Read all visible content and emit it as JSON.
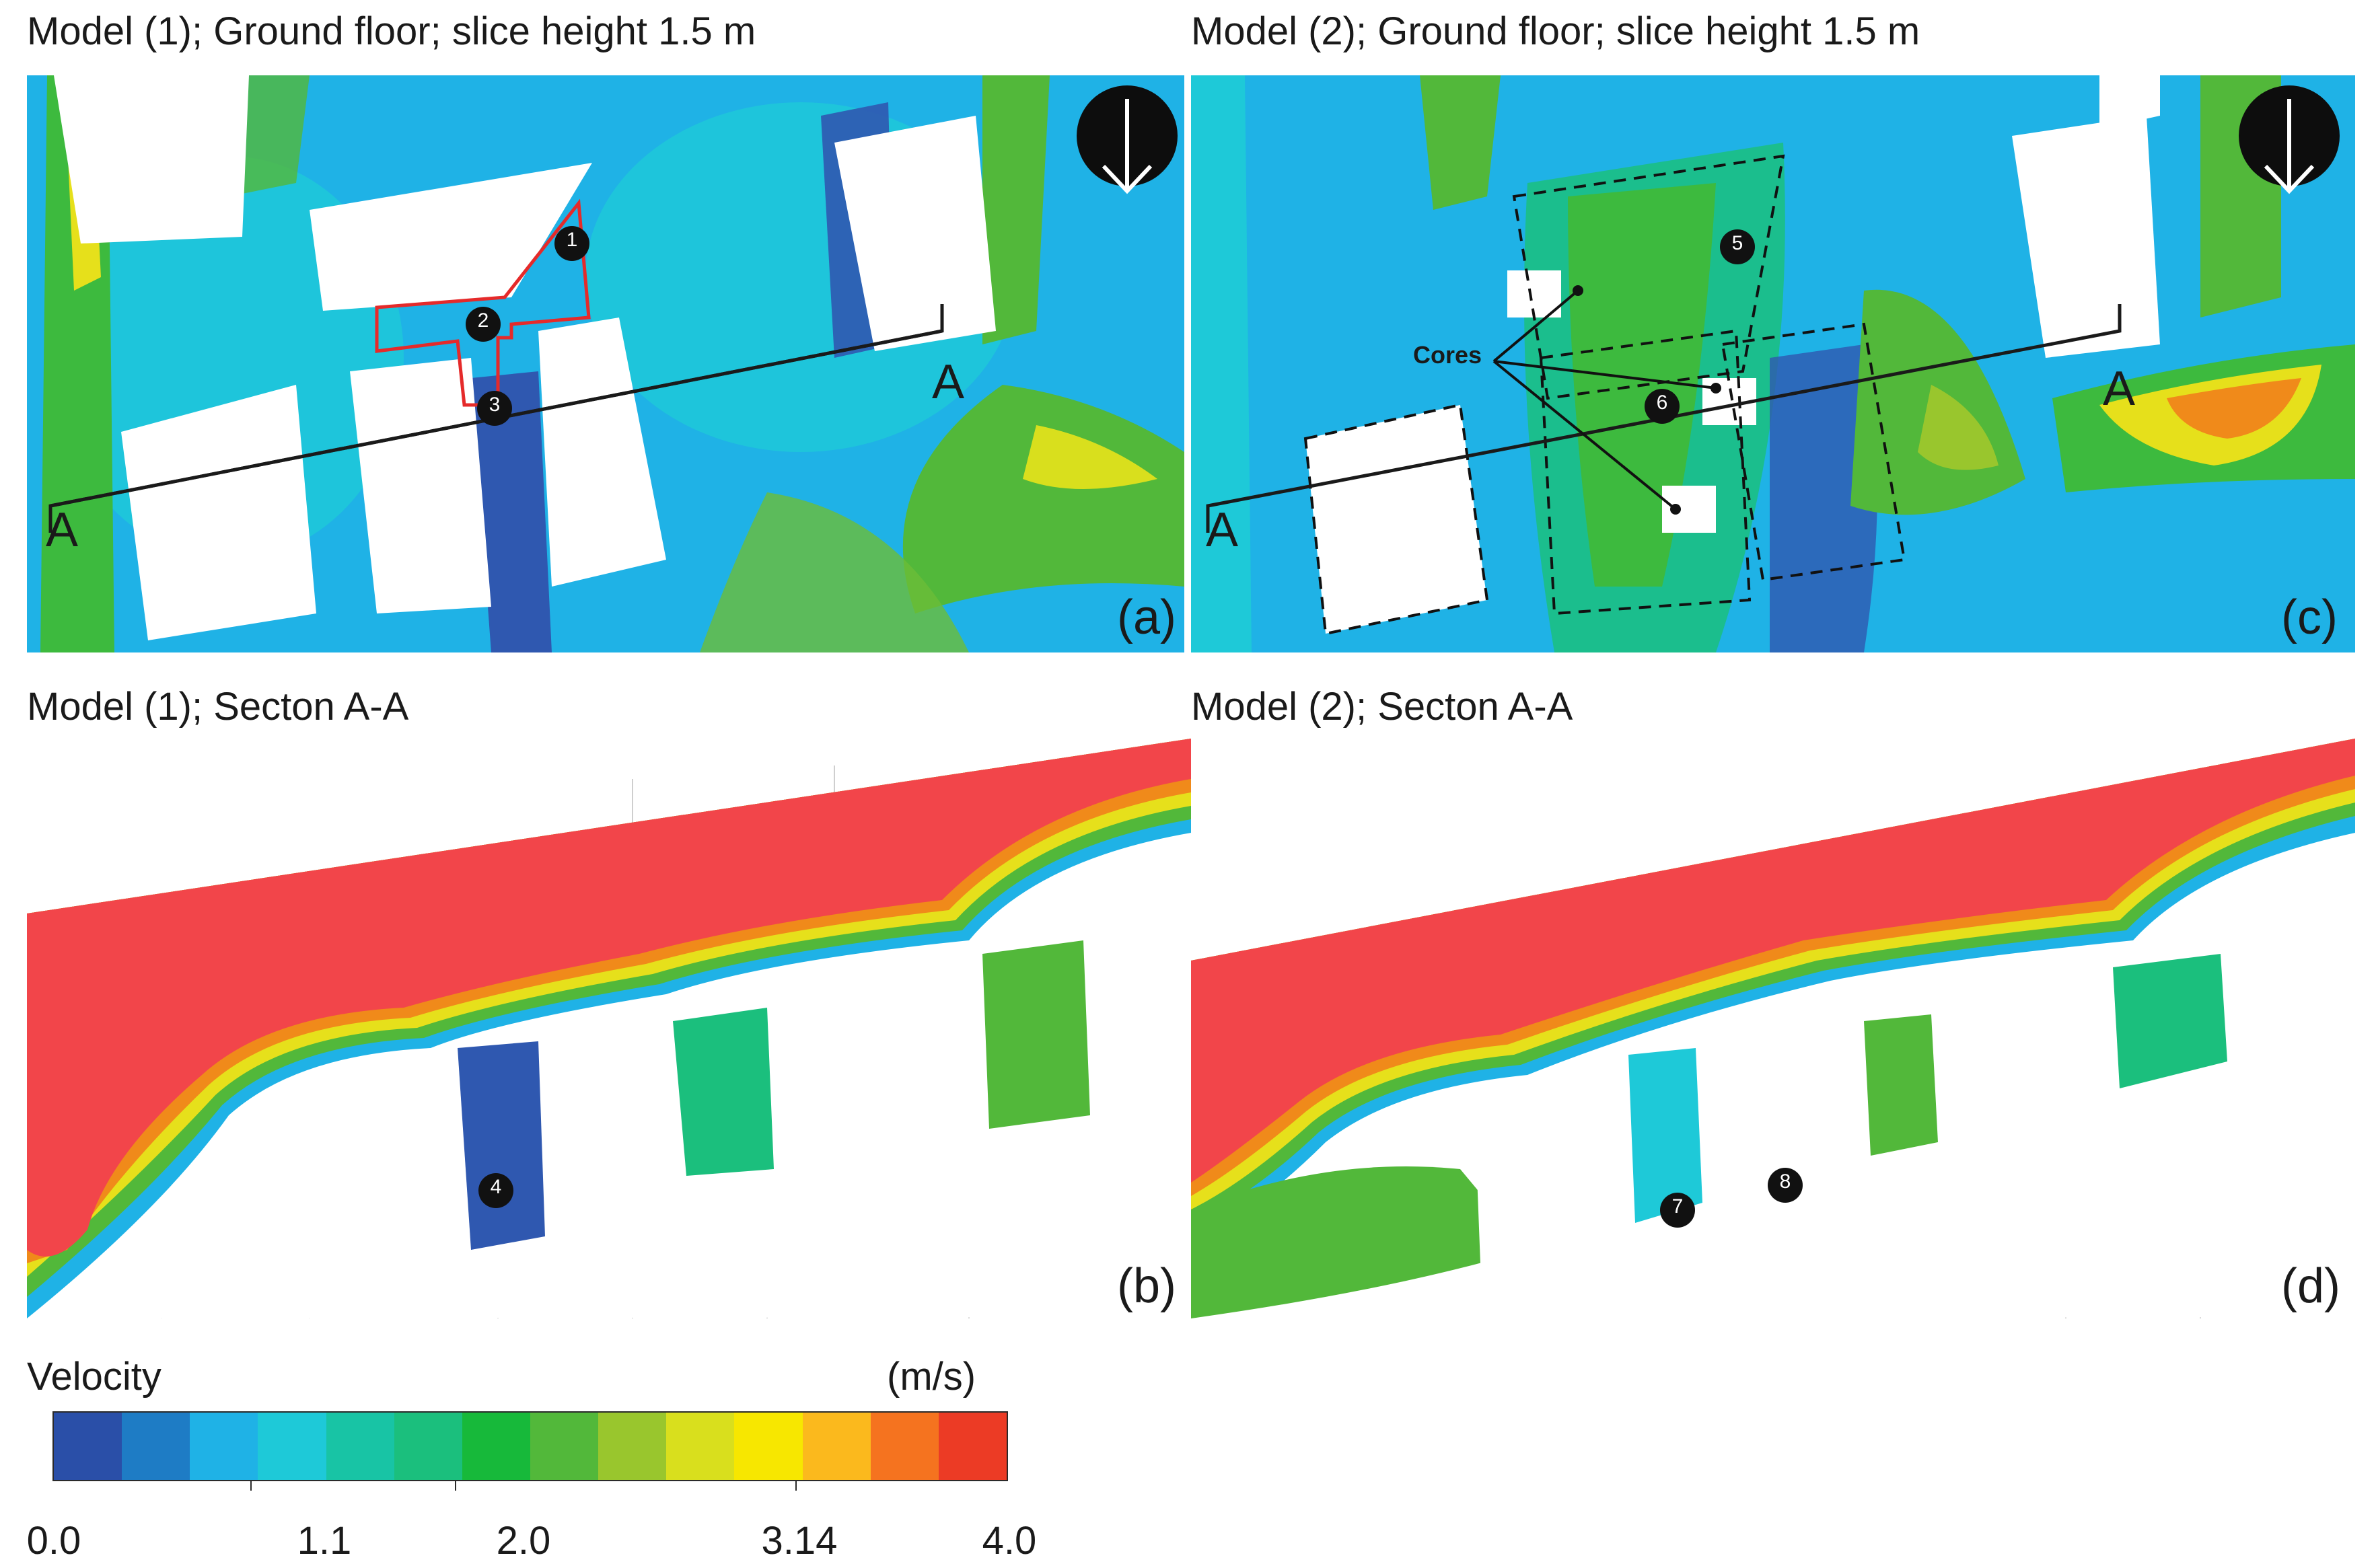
{
  "panels": {
    "a": {
      "title": "Model (1); Ground floor; slice height 1.5 m",
      "label": "(a)",
      "section_mark": "A",
      "markers": [
        "1",
        "2",
        "3"
      ]
    },
    "c": {
      "title": "Model (2); Ground floor; slice height 1.5 m",
      "label": "(c)",
      "section_mark": "A",
      "markers": [
        "5",
        "6"
      ],
      "callout": "Cores"
    },
    "b": {
      "title": "Model (1); Secton A-A",
      "label": "(b)",
      "markers": [
        "4"
      ]
    },
    "d": {
      "title": "Model (2); Secton A-A",
      "label": "(d)",
      "markers": [
        "7",
        "8"
      ]
    }
  },
  "legend": {
    "title": "Velocity",
    "unit": "(m/s)",
    "ticks": [
      "0.0",
      "1.1",
      "2.0",
      "3.14",
      "4.0"
    ],
    "colors": [
      "#2a4fa8",
      "#1e7cc5",
      "#1fb2e6",
      "#1ec9d8",
      "#18c4a5",
      "#1bbf7d",
      "#17b93a",
      "#52b83a",
      "#99c62d",
      "#d9df1d",
      "#f7e700",
      "#fbb91d",
      "#f5731f",
      "#ec3b25"
    ]
  },
  "colors": {
    "contour_blue": "#2f58b0",
    "contour_cyan": "#22b4e0",
    "contour_green": "#3dba3e",
    "contour_yellow": "#e6e01b",
    "contour_orange": "#f08a1a",
    "section_red": "#f2454a",
    "outline_red": "#e52a2a"
  }
}
